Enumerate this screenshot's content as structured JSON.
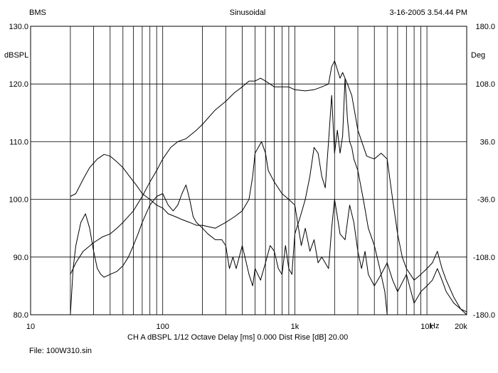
{
  "header": {
    "left": "BMS",
    "center": "Sinusoidal",
    "right": "3-16-2005 3.54.44 PM"
  },
  "footer": {
    "settings": "CH A   dBSPL   1/12 Octave   Delay [ms] 0.000   Dist Rise [dB] 20.00",
    "file": "File: 100W310.sin"
  },
  "chart_data": {
    "type": "line",
    "title": "Sinusoidal",
    "xscale": "log",
    "xlim": [
      10,
      20000
    ],
    "xlabel": "Hz",
    "x_ticks": [
      {
        "v": 10,
        "label": "10"
      },
      {
        "v": 100,
        "label": "100"
      },
      {
        "v": 1000,
        "label": "1k"
      },
      {
        "v": 10000,
        "label": "10k"
      },
      {
        "v": 20000,
        "label": "20k"
      }
    ],
    "ylabel": "dBSPL",
    "ylim": [
      80,
      130
    ],
    "y_ticks": [
      "130.0",
      "120.0",
      "110.0",
      "100.0",
      "90.0",
      "80.0"
    ],
    "y2label": "Deg",
    "y2lim": [
      -180,
      180
    ],
    "y2_ticks": [
      "180.0",
      "108.0",
      "36.0",
      "-36.0",
      "-108.0",
      "-180.0"
    ],
    "grid": true,
    "legend": "none",
    "series": [
      {
        "values": [
          [
            20,
            100.5
          ],
          [
            22,
            101
          ],
          [
            25,
            103.5
          ],
          [
            28,
            105.5
          ],
          [
            32,
            107
          ],
          [
            36,
            107.8
          ],
          [
            40,
            107.5
          ],
          [
            45,
            106.5
          ],
          [
            50,
            105.5
          ],
          [
            56,
            104
          ],
          [
            63,
            102.5
          ],
          [
            70,
            101
          ],
          [
            80,
            100
          ],
          [
            90,
            99
          ],
          [
            100,
            98.5
          ],
          [
            110,
            97.5
          ],
          [
            125,
            97
          ],
          [
            140,
            96.5
          ],
          [
            160,
            96
          ],
          [
            180,
            95.5
          ],
          [
            200,
            95.5
          ],
          [
            250,
            95
          ],
          [
            300,
            96
          ],
          [
            350,
            97
          ],
          [
            400,
            98
          ],
          [
            450,
            100
          ],
          [
            480,
            104
          ],
          [
            500,
            108
          ],
          [
            560,
            110
          ],
          [
            600,
            108
          ],
          [
            630,
            105
          ],
          [
            700,
            103
          ],
          [
            800,
            101
          ],
          [
            900,
            100
          ],
          [
            1000,
            99
          ],
          [
            1050,
            96
          ],
          [
            1120,
            92
          ],
          [
            1200,
            95
          ],
          [
            1300,
            91
          ],
          [
            1400,
            93
          ],
          [
            1500,
            89
          ],
          [
            1600,
            90
          ],
          [
            1800,
            88
          ],
          [
            1900,
            95
          ],
          [
            2000,
            100
          ],
          [
            2100,
            97
          ],
          [
            2200,
            94
          ],
          [
            2400,
            93
          ],
          [
            2600,
            99
          ],
          [
            2800,
            96
          ],
          [
            3000,
            91
          ],
          [
            3200,
            88
          ],
          [
            3400,
            91
          ],
          [
            3600,
            87
          ],
          [
            4000,
            85
          ],
          [
            4500,
            87
          ],
          [
            5000,
            89
          ],
          [
            5500,
            86
          ],
          [
            6000,
            84
          ],
          [
            7000,
            87
          ],
          [
            8000,
            82
          ],
          [
            9000,
            84
          ],
          [
            10000,
            85
          ],
          [
            11000,
            86
          ],
          [
            12000,
            88
          ],
          [
            13000,
            86
          ],
          [
            14000,
            84
          ],
          [
            16000,
            82
          ],
          [
            18000,
            81
          ],
          [
            20000,
            80.5
          ]
        ]
      },
      {
        "values": [
          [
            20,
            87
          ],
          [
            22,
            89
          ],
          [
            25,
            91
          ],
          [
            30,
            92.5
          ],
          [
            35,
            93.5
          ],
          [
            40,
            94
          ],
          [
            45,
            95
          ],
          [
            50,
            96
          ],
          [
            60,
            98
          ],
          [
            70,
            100.5
          ],
          [
            80,
            103
          ],
          [
            90,
            105
          ],
          [
            100,
            107
          ],
          [
            115,
            109
          ],
          [
            130,
            110
          ],
          [
            150,
            110.5
          ],
          [
            180,
            112
          ],
          [
            200,
            113
          ],
          [
            250,
            115.5
          ],
          [
            300,
            117
          ],
          [
            350,
            118.5
          ],
          [
            400,
            119.5
          ],
          [
            450,
            120.5
          ],
          [
            500,
            120.5
          ],
          [
            550,
            121
          ],
          [
            600,
            120.5
          ],
          [
            700,
            119.5
          ],
          [
            800,
            119.5
          ],
          [
            900,
            119.5
          ],
          [
            1000,
            119
          ],
          [
            1200,
            118.8
          ],
          [
            1400,
            119
          ],
          [
            1600,
            119.5
          ],
          [
            1800,
            120
          ],
          [
            1900,
            123
          ],
          [
            2000,
            124
          ],
          [
            2200,
            121
          ],
          [
            2300,
            122
          ],
          [
            2500,
            120
          ],
          [
            2700,
            118
          ],
          [
            3000,
            112
          ],
          [
            3500,
            107.5
          ],
          [
            4000,
            107
          ],
          [
            4500,
            108
          ],
          [
            5000,
            107
          ],
          [
            5500,
            100
          ],
          [
            6000,
            94
          ],
          [
            6500,
            90
          ],
          [
            7000,
            88
          ],
          [
            8000,
            86
          ],
          [
            9000,
            87
          ],
          [
            10000,
            88
          ],
          [
            11000,
            89
          ],
          [
            12000,
            91
          ],
          [
            13000,
            88
          ],
          [
            14000,
            86
          ],
          [
            16000,
            83
          ],
          [
            18000,
            81
          ],
          [
            20000,
            80
          ]
        ]
      },
      {
        "values": [
          [
            20,
            80
          ],
          [
            21,
            88
          ],
          [
            22,
            92
          ],
          [
            24,
            96
          ],
          [
            26,
            97.5
          ],
          [
            28,
            95
          ],
          [
            30,
            91
          ],
          [
            32,
            88
          ],
          [
            34,
            87
          ],
          [
            36,
            86.5
          ],
          [
            40,
            87
          ],
          [
            45,
            87.5
          ],
          [
            50,
            88.5
          ],
          [
            55,
            90
          ],
          [
            60,
            92
          ],
          [
            65,
            94
          ],
          [
            70,
            96
          ],
          [
            80,
            99
          ],
          [
            90,
            100.5
          ],
          [
            100,
            101
          ],
          [
            110,
            99
          ],
          [
            120,
            98
          ],
          [
            130,
            99
          ],
          [
            140,
            101
          ],
          [
            150,
            102.5
          ],
          [
            160,
            100
          ],
          [
            170,
            97
          ],
          [
            180,
            96
          ],
          [
            200,
            95
          ],
          [
            220,
            94
          ],
          [
            250,
            93
          ],
          [
            280,
            93
          ],
          [
            300,
            92
          ],
          [
            320,
            88
          ],
          [
            340,
            90
          ],
          [
            360,
            88
          ],
          [
            400,
            92
          ],
          [
            450,
            87
          ],
          [
            480,
            85
          ],
          [
            500,
            88
          ],
          [
            550,
            86
          ],
          [
            600,
            89
          ],
          [
            650,
            92
          ],
          [
            700,
            91
          ],
          [
            750,
            88
          ],
          [
            800,
            87
          ],
          [
            850,
            92
          ],
          [
            900,
            88
          ],
          [
            950,
            87
          ],
          [
            1000,
            94
          ],
          [
            1100,
            97
          ],
          [
            1200,
            100
          ],
          [
            1300,
            104
          ],
          [
            1400,
            109
          ],
          [
            1500,
            108
          ],
          [
            1600,
            104
          ],
          [
            1700,
            102
          ],
          [
            1800,
            110
          ],
          [
            1900,
            118
          ],
          [
            2000,
            108
          ],
          [
            2100,
            112
          ],
          [
            2200,
            108
          ],
          [
            2300,
            111
          ],
          [
            2400,
            121
          ],
          [
            2500,
            114
          ],
          [
            2600,
            110
          ],
          [
            2700,
            109
          ],
          [
            2800,
            107
          ],
          [
            3000,
            105
          ],
          [
            3300,
            100
          ],
          [
            3600,
            95
          ],
          [
            4000,
            92
          ],
          [
            4400,
            88
          ],
          [
            4800,
            84
          ],
          [
            5000,
            80
          ]
        ]
      }
    ]
  }
}
